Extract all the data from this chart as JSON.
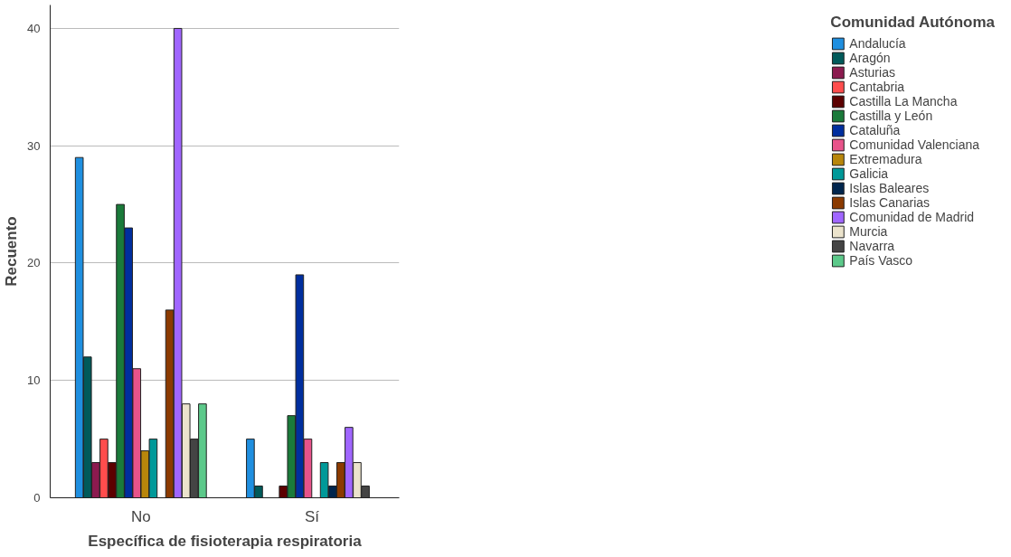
{
  "chart_data": {
    "type": "bar",
    "xlabel": "Específica de fisioterapia respiratoria",
    "ylabel": "Recuento",
    "legend_title": "Comunidad Autónoma",
    "categories": [
      "No",
      "Sí"
    ],
    "ylim": [
      0,
      42
    ],
    "yticks": [
      0,
      10,
      20,
      30,
      40
    ],
    "grid": "y",
    "legend": "right",
    "series": [
      {
        "name": "Andalucía",
        "color": "#1f8fe0",
        "values": [
          29,
          5
        ]
      },
      {
        "name": "Aragón",
        "color": "#005a5a",
        "values": [
          12,
          1
        ]
      },
      {
        "name": "Asturias",
        "color": "#8b1a4f",
        "values": [
          3,
          null
        ]
      },
      {
        "name": "Cantabria",
        "color": "#ff4d4d",
        "values": [
          5,
          null
        ]
      },
      {
        "name": "Castilla La Mancha",
        "color": "#5c0000",
        "values": [
          3,
          1
        ]
      },
      {
        "name": "Castilla y León",
        "color": "#1a7a3a",
        "values": [
          25,
          7
        ]
      },
      {
        "name": "Cataluña",
        "color": "#002e9e",
        "values": [
          23,
          19
        ]
      },
      {
        "name": "Comunidad Valenciana",
        "color": "#e8538a",
        "values": [
          11,
          5
        ]
      },
      {
        "name": "Extremadura",
        "color": "#b8860b",
        "values": [
          4,
          null
        ]
      },
      {
        "name": "Galicia",
        "color": "#009999",
        "values": [
          5,
          3
        ]
      },
      {
        "name": "Islas Baleares",
        "color": "#00254d",
        "values": [
          null,
          1
        ]
      },
      {
        "name": "Islas Canarias",
        "color": "#8b3a00",
        "values": [
          16,
          3
        ]
      },
      {
        "name": "Comunidad de Madrid",
        "color": "#a066ff",
        "values": [
          40,
          6
        ]
      },
      {
        "name": "Murcia",
        "color": "#ebe3cc",
        "values": [
          8,
          3
        ]
      },
      {
        "name": "Navarra",
        "color": "#444444",
        "values": [
          5,
          1
        ]
      },
      {
        "name": "País Vasco",
        "color": "#5cc98a",
        "values": [
          8,
          null
        ]
      }
    ]
  }
}
